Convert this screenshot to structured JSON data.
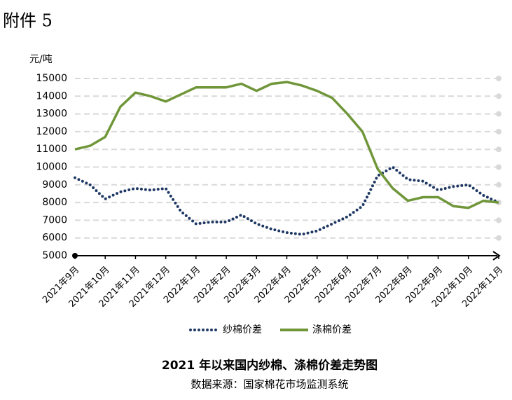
{
  "header": "附件 5",
  "chart_data": {
    "type": "line",
    "title": "2021 年以来国内纱棉、涤棉价差走势图",
    "subtitle": "数据来源：国家棉花市场监测系统",
    "y_label": "元/吨",
    "categories": [
      "2021年9月",
      null,
      "2021年10月",
      null,
      "2021年11月",
      null,
      "2021年12月",
      null,
      "2022年1月",
      null,
      "2022年2月",
      null,
      "2022年3月",
      null,
      "2022年4月",
      null,
      "2022年5月",
      null,
      "2022年6月",
      null,
      "2022年7月",
      null,
      "2022年8月",
      null,
      "2022年9月",
      null,
      "2022年10月",
      null,
      "2022年11月"
    ],
    "series": [
      {
        "name": "纱棉价差",
        "color": "#1f3864",
        "style": "dotted",
        "values": [
          9400,
          9000,
          8200,
          8600,
          8800,
          8700,
          8800,
          7500,
          6800,
          6900,
          6900,
          7300,
          6800,
          6500,
          6300,
          6200,
          6400,
          6800,
          7200,
          7800,
          9500,
          10000,
          9300,
          9200,
          8700,
          8900,
          9000,
          8400,
          8000
        ]
      },
      {
        "name": "涤棉价差",
        "color": "#70963a",
        "style": "solid",
        "values": [
          11000,
          11200,
          11700,
          13400,
          14200,
          14000,
          13700,
          14100,
          14500,
          14500,
          14500,
          14700,
          14300,
          14700,
          14800,
          14600,
          14300,
          13900,
          13000,
          12000,
          9900,
          8800,
          8100,
          8300,
          8300,
          7800,
          7700,
          8100,
          8000
        ]
      }
    ],
    "ylim": [
      5000,
      15000
    ],
    "yticks": [
      5000,
      6000,
      7000,
      8000,
      9000,
      10000,
      11000,
      12000,
      13000,
      14000,
      15000
    ],
    "grid": true,
    "legend": "bottom"
  }
}
